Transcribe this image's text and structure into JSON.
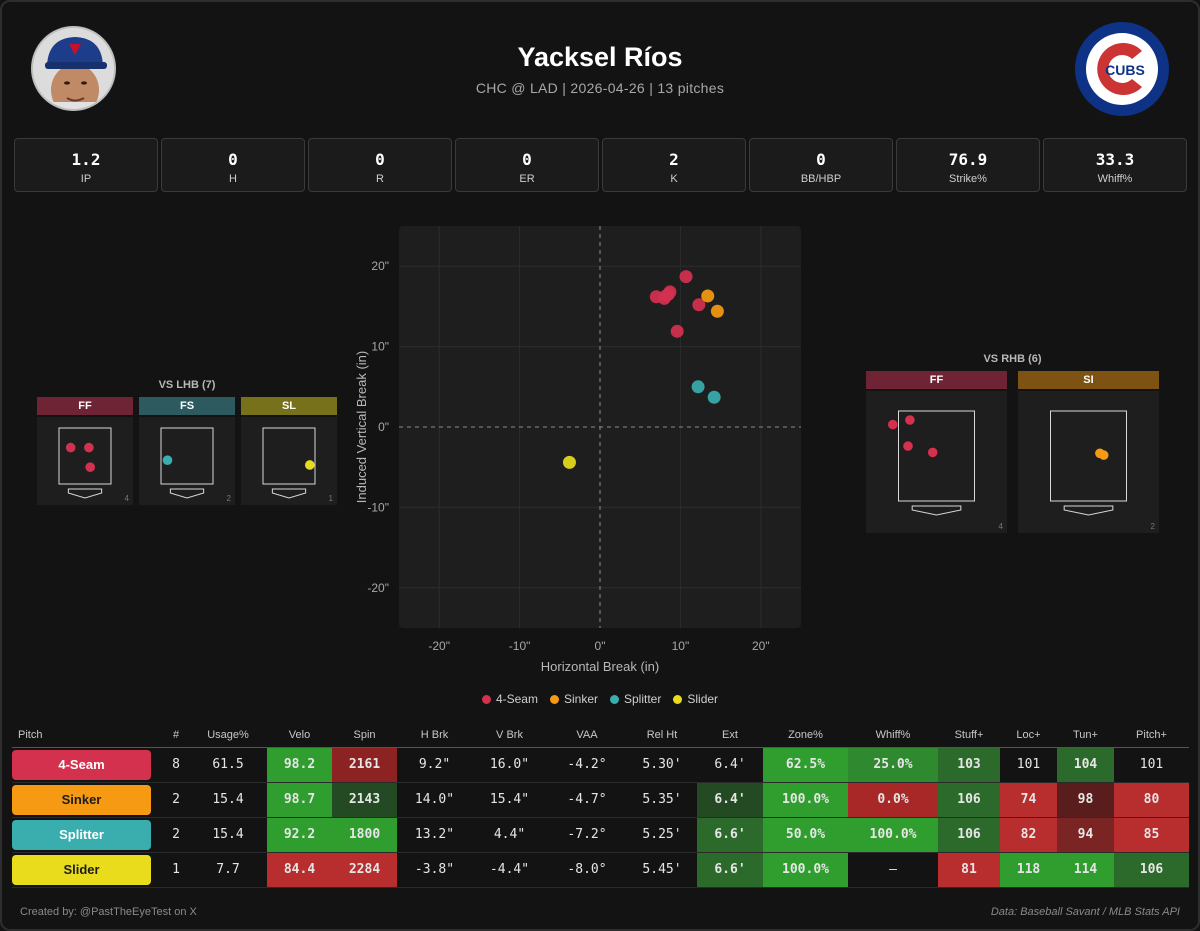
{
  "header": {
    "pitcher_name": "Yacksel Ríos",
    "subtitle": "CHC @ LAD | 2026-04-26 | 13 pitches",
    "team_logo_text": "CUBS"
  },
  "stats": [
    {
      "label": "IP",
      "value": "1.2"
    },
    {
      "label": "H",
      "value": "0"
    },
    {
      "label": "R",
      "value": "0"
    },
    {
      "label": "ER",
      "value": "0"
    },
    {
      "label": "K",
      "value": "2"
    },
    {
      "label": "BB/HBP",
      "value": "0"
    },
    {
      "label": "Strike%",
      "value": "76.9"
    },
    {
      "label": "Whiff%",
      "value": "33.3"
    }
  ],
  "pitch_colors": {
    "4-Seam": "#d4314f",
    "Sinker": "#f59a12",
    "Splitter": "#3aaeae",
    "Slider": "#e8dc1c"
  },
  "chart_data": [
    {
      "type": "scatter",
      "xlabel": "Horizontal Break (in)",
      "ylabel": "Induced Vertical Break (in)",
      "xlim": [
        -25,
        25
      ],
      "ylim": [
        -25,
        25
      ],
      "xticks": [
        "-20\"",
        "-10\"",
        "0\"",
        "10\"",
        "20\""
      ],
      "yticks": [
        "20\"",
        "10\"",
        "0\"",
        "-10\"",
        "-20\""
      ],
      "grid": true,
      "legend_position": "bottom",
      "series": [
        {
          "name": "4-Seam",
          "points": [
            [
              7.0,
              16.2
            ],
            [
              8.0,
              16.0
            ],
            [
              8.5,
              16.5
            ],
            [
              8.7,
              16.8
            ],
            [
              10.7,
              18.7
            ],
            [
              12.3,
              15.2
            ],
            [
              9.6,
              11.9
            ],
            [
              8.2,
              16.3
            ]
          ]
        },
        {
          "name": "Sinker",
          "points": [
            [
              13.4,
              16.3
            ],
            [
              14.6,
              14.4
            ]
          ]
        },
        {
          "name": "Splitter",
          "points": [
            [
              12.2,
              5.0
            ],
            [
              14.2,
              3.7
            ]
          ]
        },
        {
          "name": "Slider",
          "points": [
            [
              -3.8,
              -4.4
            ]
          ]
        }
      ]
    }
  ],
  "zones": {
    "lhb": {
      "title": "VS LHB (7)",
      "panels": [
        {
          "pitch": "FF",
          "color": "#6e2434",
          "dot": "#d4314f",
          "count": "4",
          "points": [
            [
              -0.55,
              0.3
            ],
            [
              0.15,
              0.3
            ],
            [
              0.2,
              -0.4
            ]
          ]
        },
        {
          "pitch": "FS",
          "color": "#2c5a5e",
          "dot": "#3aaeae",
          "count": "2",
          "points": [
            [
              -0.75,
              -0.15
            ]
          ]
        },
        {
          "pitch": "SL",
          "color": "#78711c",
          "dot": "#e8dc1c",
          "count": "1",
          "points": [
            [
              0.8,
              -0.32
            ]
          ]
        }
      ]
    },
    "rhb": {
      "title": "VS RHB (6)",
      "panels": [
        {
          "pitch": "FF",
          "color": "#6e2434",
          "dot": "#d4314f",
          "count": "4",
          "points": [
            [
              -1.15,
              0.7
            ],
            [
              -0.7,
              0.8
            ],
            [
              -0.75,
              0.22
            ],
            [
              -0.1,
              0.08
            ]
          ]
        },
        {
          "pitch": "SI",
          "color": "#7d5212",
          "dot": "#f59a12",
          "count": "2",
          "points": [
            [
              0.3,
              0.06
            ],
            [
              0.4,
              0.02
            ]
          ]
        }
      ]
    }
  },
  "table": {
    "headers": [
      "Pitch",
      "#",
      "Usage%",
      "Velo",
      "Spin",
      "H Brk",
      "V Brk",
      "VAA",
      "Rel Ht",
      "Ext",
      "Zone%",
      "Whiff%",
      "Stuff+",
      "Loc+",
      "Tun+",
      "Pitch+"
    ],
    "rows": [
      {
        "cells": [
          "4-Seam",
          "8",
          "61.5",
          "98.2",
          "2161",
          "9.2\"",
          "16.0\"",
          "-4.2°",
          "5.30'",
          "6.4'",
          "62.5%",
          "25.0%",
          "103",
          "101",
          "104",
          "101"
        ],
        "bgs": [
          "#d4314f",
          "",
          "",
          "#2f9e2f",
          "#8d2222",
          "",
          "",
          "",
          "",
          "",
          "#2f9e2f",
          "#2f8a2f",
          "#2c6a2c",
          "",
          "#2c6a2c",
          ""
        ]
      },
      {
        "cells": [
          "Sinker",
          "2",
          "15.4",
          "98.7",
          "2143",
          "14.0\"",
          "15.4\"",
          "-4.7°",
          "5.35'",
          "6.4'",
          "100.0%",
          "0.0%",
          "106",
          "74",
          "98",
          "80"
        ],
        "bgs": [
          "#f59a12",
          "",
          "",
          "#2f9e2f",
          "#234a23",
          "",
          "",
          "",
          "",
          "#234a23",
          "#2f9e2f",
          "#a82828",
          "#2c6a2c",
          "#b82d2d",
          "#5a1d1d",
          "#b82d2d"
        ]
      },
      {
        "cells": [
          "Splitter",
          "2",
          "15.4",
          "92.2",
          "1800",
          "13.2\"",
          "4.4\"",
          "-7.2°",
          "5.25'",
          "6.6'",
          "50.0%",
          "100.0%",
          "106",
          "82",
          "94",
          "85"
        ],
        "bgs": [
          "#3aaeae",
          "",
          "",
          "#2f9e2f",
          "#2f9e2f",
          "",
          "",
          "",
          "",
          "#2c6a2c",
          "#2f9e2f",
          "#2f9e2f",
          "#2c6a2c",
          "#b82d2d",
          "#7a2424",
          "#b82d2d"
        ]
      },
      {
        "cells": [
          "Slider",
          "1",
          "7.7",
          "84.4",
          "2284",
          "-3.8\"",
          "-4.4\"",
          "-8.0°",
          "5.45'",
          "6.6'",
          "100.0%",
          "—",
          "81",
          "118",
          "114",
          "106"
        ],
        "bgs": [
          "#e8dc1c",
          "",
          "",
          "#b82d2d",
          "#b82d2d",
          "",
          "",
          "",
          "",
          "#2c6a2c",
          "#2f9e2f",
          "",
          "#b82d2d",
          "#2f9e2f",
          "#2f9e2f",
          "#2c6a2c"
        ]
      }
    ]
  },
  "footer": {
    "left": "Created by: @PastTheEyeTest on X",
    "right": "Data: Baseball Savant / MLB Stats API"
  }
}
